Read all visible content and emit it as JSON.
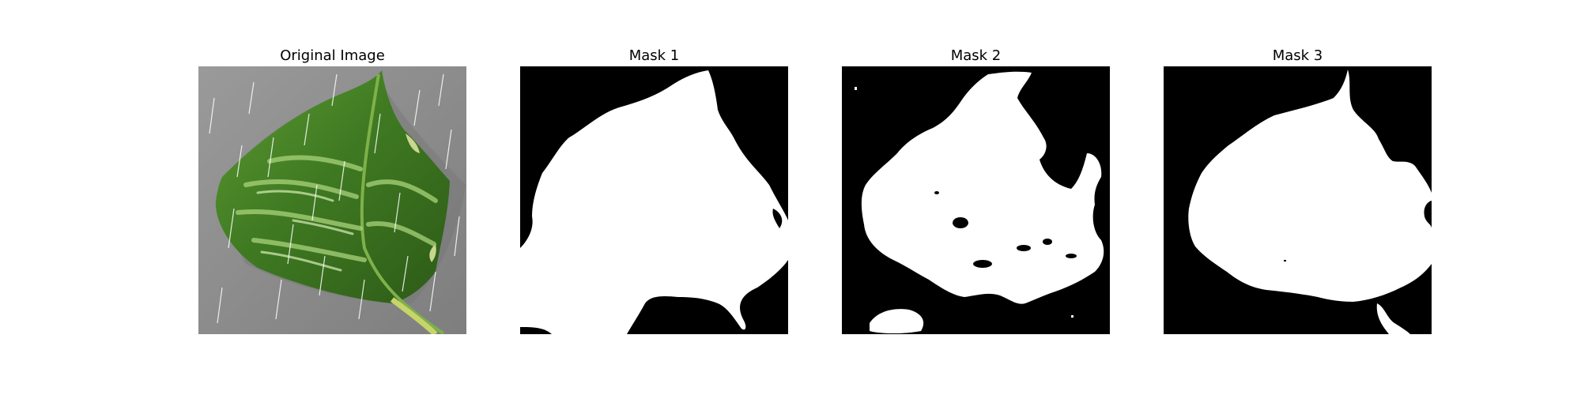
{
  "figure": {
    "panels": [
      {
        "title": "Original Image"
      },
      {
        "title": "Mask 1"
      },
      {
        "title": "Mask 2"
      },
      {
        "title": "Mask 3"
      }
    ],
    "colors": {
      "background": "#ffffff",
      "mask_background": "#000000",
      "mask_foreground": "#ffffff",
      "leaf_green": "#4e8a2a",
      "leaf_dark": "#2f5d1a",
      "leaf_light": "#9fcf6b",
      "ground_gray": "#8d8d8d"
    }
  }
}
